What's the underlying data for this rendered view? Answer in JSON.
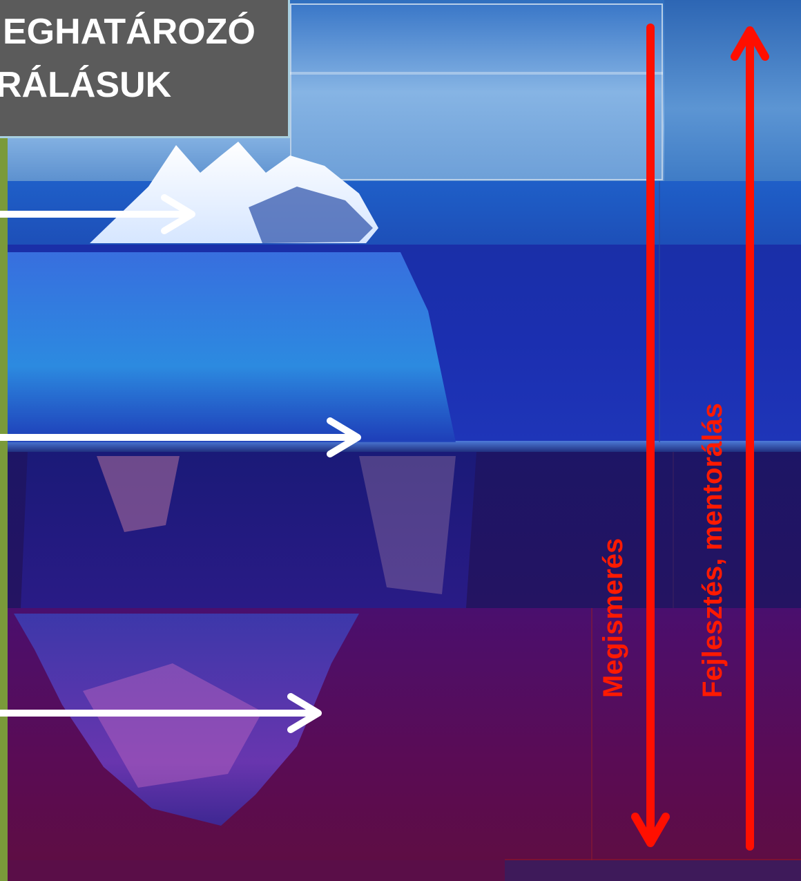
{
  "title": {
    "line1": "EGHATÁROZÓ",
    "line2": "RÁLÁSUK"
  },
  "labels": {
    "recognition": "Megismerés",
    "development": "Fejlesztés, mentorálás"
  },
  "colors": {
    "arrow_red": "#ff0f00",
    "arrow_white": "#ffffff",
    "title_bg": "#5b5b5b",
    "label_red": "#ff1a00"
  }
}
